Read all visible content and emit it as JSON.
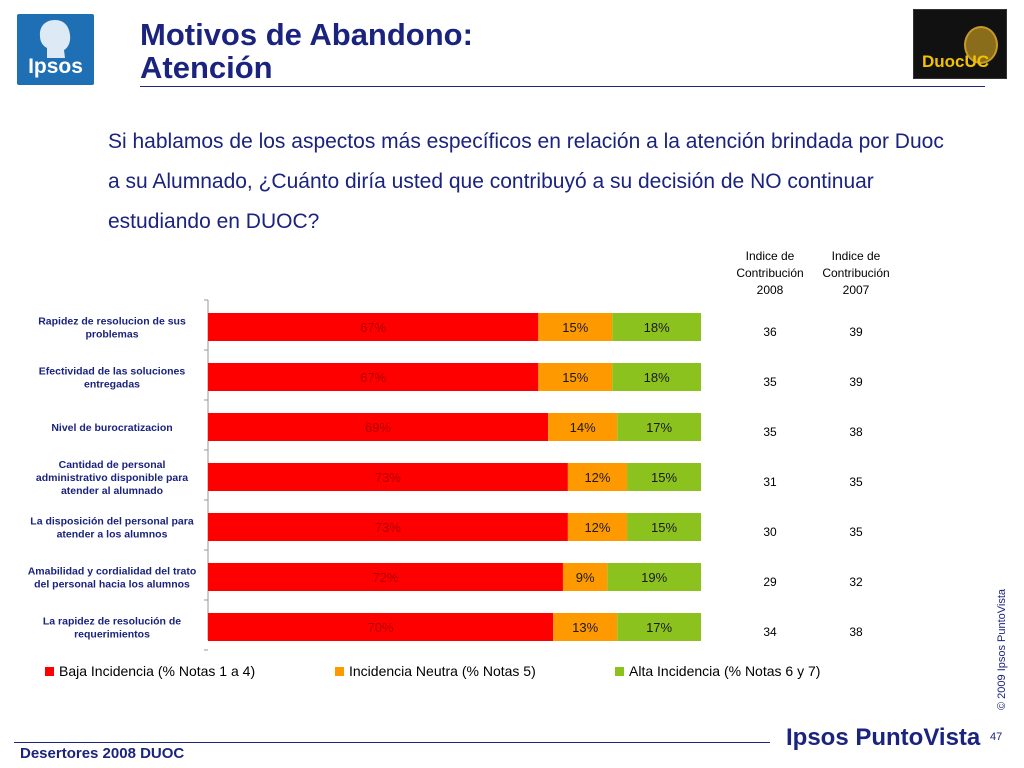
{
  "header": {
    "logo_left": "Ipsos",
    "title_line1": "Motivos de Abandono:",
    "title_line2": "Atención",
    "logo_right": "DuocUC"
  },
  "question": "Si hablamos de los aspectos más específicos en relación a la atención brindada por Duoc a su Alumnado, ¿Cuánto diría usted que contribuyó a su decisión de NO continuar estudiando en DUOC?",
  "index_headers": {
    "col_2008": [
      "Indice de",
      "Contribución",
      "2008"
    ],
    "col_2007": [
      "Indice de",
      "Contribución",
      "2007"
    ]
  },
  "colors": {
    "baja": "#ff0000",
    "neutra": "#ff9900",
    "alta": "#8cc21e",
    "title": "#1a237e"
  },
  "chart_data": {
    "type": "bar",
    "orientation": "horizontal",
    "stacked": true,
    "categories": [
      [
        "Rapidez de resolucion de sus",
        "problemas"
      ],
      [
        "Efectividad de las soluciones",
        "entregadas"
      ],
      [
        "Nivel de burocratizacion"
      ],
      [
        "Cantidad de personal",
        "administrativo disponible para",
        "atender al alumnado"
      ],
      [
        "La disposición del personal para",
        "atender a los alumnos"
      ],
      [
        "Amabilidad y cordialidad del trato",
        "del personal hacia los alumnos"
      ],
      [
        "La rapidez de resolución de",
        "requerimientos"
      ]
    ],
    "series": [
      {
        "name": "Baja Incidencia (% Notas 1 a 4)",
        "values": [
          67,
          67,
          69,
          73,
          73,
          72,
          70
        ]
      },
      {
        "name": "Incidencia Neutra (% Notas 5)",
        "values": [
          15,
          15,
          14,
          12,
          12,
          9,
          13
        ]
      },
      {
        "name": "Alta Incidencia (% Notas 6 y 7)",
        "values": [
          18,
          18,
          17,
          15,
          15,
          19,
          17
        ]
      }
    ],
    "value_suffix": "%",
    "xlim": [
      0,
      100
    ],
    "legend_position": "bottom",
    "index_2008": [
      36,
      35,
      35,
      31,
      30,
      29,
      34
    ],
    "index_2007": [
      39,
      39,
      38,
      35,
      35,
      32,
      38
    ]
  },
  "side_note": "© 2009 Ipsos PuntoVista",
  "footer": {
    "left": "Desertores 2008 DUOC",
    "logo": "Ipsos PuntoVista",
    "page": "47"
  }
}
